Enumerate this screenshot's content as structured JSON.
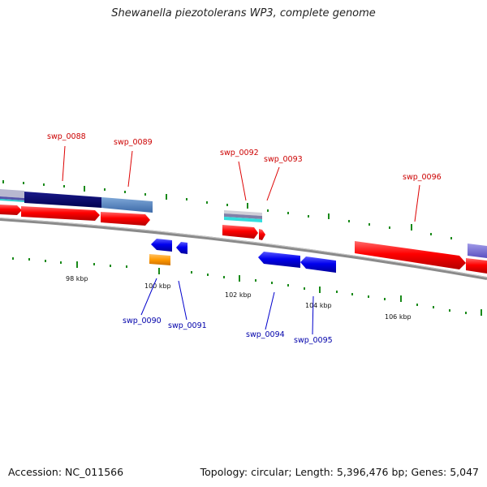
{
  "title": "Shewanella piezotolerans WP3, complete genome",
  "footer": {
    "accession": "Accession: NC_011566",
    "stats": "Topology: circular; Length: 5,396,476 bp; Genes: 5,047"
  },
  "colors": {
    "forward_gene": "#ff0000",
    "reverse_gene": "#0000ff",
    "forward_label": "#cc0000",
    "reverse_label": "#0000aa",
    "tick": "#1a8a1a",
    "backbone": "#8a8a8a",
    "rna": "#ff9900"
  },
  "tick_labels": {
    "t98": "98 kbp",
    "t100": "100 kbp",
    "t102": "102 kbp",
    "t104": "104 kbp",
    "t106": "106 kbp"
  },
  "gene_labels": {
    "swp_0088": "swp_0088",
    "swp_0089": "swp_0089",
    "swp_0090": "swp_0090",
    "swp_0091": "swp_0091",
    "swp_0092": "swp_0092",
    "swp_0093": "swp_0093",
    "swp_0094": "swp_0094",
    "swp_0095": "swp_0095",
    "swp_0096": "swp_0096"
  }
}
